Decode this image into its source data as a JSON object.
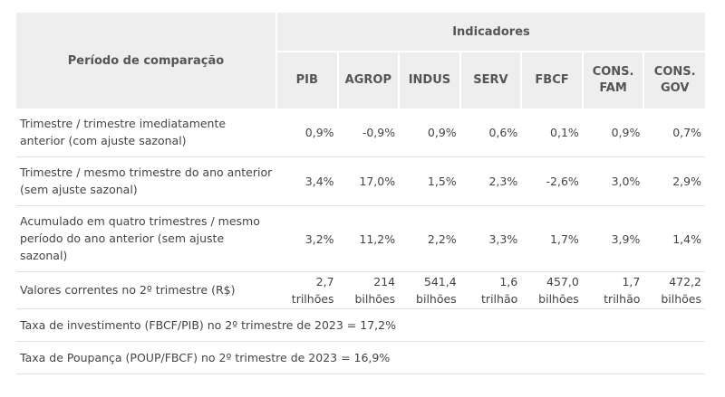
{
  "header": {
    "period_label": "Período de comparação",
    "group_label": "Indicadores",
    "indicators": [
      "PIB",
      "AGROP",
      "INDUS",
      "SERV",
      "FBCF",
      "CONS.\nFAM",
      "CONS.\nGOV"
    ]
  },
  "rows": [
    {
      "label": "Trimestre / trimestre imediatamente anterior (com ajuste sazonal)",
      "values": [
        "0,9%",
        "-0,9%",
        "0,9%",
        "0,6%",
        "0,1%",
        "0,9%",
        "0,7%"
      ]
    },
    {
      "label": "Trimestre / mesmo trimestre do ano anterior (sem ajuste sazonal)",
      "values": [
        "3,4%",
        "17,0%",
        "1,5%",
        "2,3%",
        "-2,6%",
        "3,0%",
        "2,9%"
      ]
    },
    {
      "label": "Acumulado em quatro trimestres / mesmo período do ano anterior (sem ajuste sazonal)",
      "values": [
        "3,2%",
        "11,2%",
        "2,2%",
        "3,3%",
        "1,7%",
        "3,9%",
        "1,4%"
      ]
    },
    {
      "label": "Valores correntes no 2º trimestre (R$)",
      "values": [
        {
          "amount": "2,7",
          "unit": "trilhões"
        },
        {
          "amount": "214",
          "unit": "bilhões"
        },
        {
          "amount": "541,4",
          "unit": "bilhões"
        },
        {
          "amount": "1,6",
          "unit": "trilhão"
        },
        {
          "amount": "457,0",
          "unit": "bilhões"
        },
        {
          "amount": "1,7",
          "unit": "trilhão"
        },
        {
          "amount": "472,2",
          "unit": "bilhões"
        }
      ]
    }
  ],
  "footer_rows": [
    "Taxa de investimento (FBCF/PIB) no 2º trimestre de 2023 = 17,2%",
    "Taxa de Poupança (POUP/FBCF) no 2º trimestre de 2023 = 16,9%"
  ]
}
